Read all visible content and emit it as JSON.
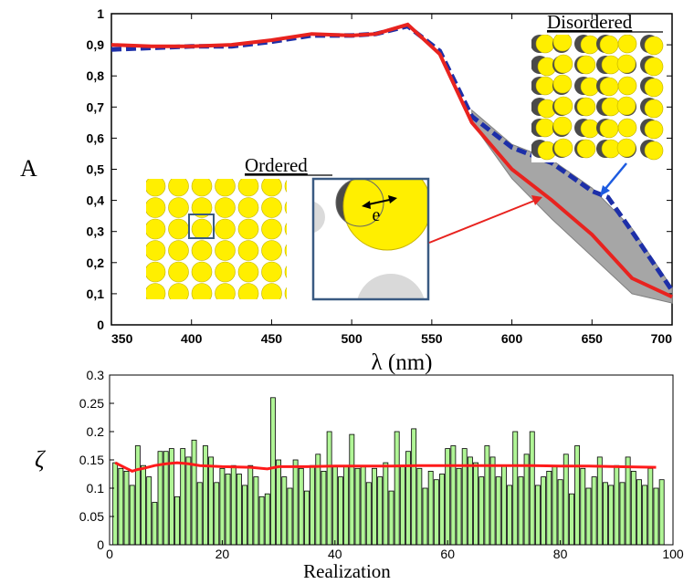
{
  "chart_data": [
    {
      "type": "area",
      "title": "",
      "xlabel": "λ (nm)",
      "ylabel": "A",
      "xlim": [
        350,
        700
      ],
      "ylim": [
        0,
        1
      ],
      "xticks": [
        350,
        400,
        450,
        500,
        550,
        600,
        650,
        700
      ],
      "yticks": [
        "0",
        "0,1",
        "0,2",
        "0,3",
        "0,4",
        "0,5",
        "0,6",
        "0,7",
        "0,8",
        "0,9",
        "1"
      ],
      "grid": false,
      "legend": "none",
      "series": [
        {
          "style": "solid",
          "color": "#e8231f",
          "x": [
            350,
            375,
            400,
            425,
            450,
            475,
            500,
            515,
            535,
            555,
            575,
            600,
            625,
            650,
            675,
            700
          ],
          "y": [
            0.9,
            0.895,
            0.895,
            0.9,
            0.915,
            0.935,
            0.93,
            0.935,
            0.965,
            0.87,
            0.65,
            0.5,
            0.4,
            0.29,
            0.15,
            0.09
          ]
        },
        {
          "style": "dashed",
          "color": "#1d2fa8",
          "x": [
            350,
            375,
            400,
            425,
            450,
            475,
            500,
            515,
            535,
            555,
            575,
            600,
            625,
            650,
            660,
            675,
            700
          ],
          "y": [
            0.885,
            0.89,
            0.895,
            0.895,
            0.91,
            0.93,
            0.93,
            0.935,
            0.96,
            0.88,
            0.67,
            0.57,
            0.52,
            0.43,
            0.41,
            0.3,
            0.11
          ]
        }
      ],
      "band": {
        "color": "#a6a6a6",
        "x": [
          575,
          600,
          625,
          650,
          675,
          700
        ],
        "upper": [
          0.69,
          0.58,
          0.53,
          0.44,
          0.31,
          0.12
        ],
        "lower": [
          0.65,
          0.47,
          0.34,
          0.22,
          0.1,
          0.07
        ]
      },
      "annotations": {
        "ordered": "Ordered",
        "disordered": "Disordered",
        "e_label": "e"
      },
      "colors": {
        "particle": "#ffef00",
        "shadow": "#4a4a4a",
        "frame": "#3a5a82"
      }
    },
    {
      "type": "bar",
      "title": "",
      "xlabel": "Realization",
      "ylabel": "ζ",
      "xlim": [
        0,
        100
      ],
      "ylim": [
        0,
        0.3
      ],
      "xticks": [
        0,
        20,
        40,
        60,
        80,
        100
      ],
      "yticks": [
        "0",
        "0.05",
        "0.1",
        "0.15",
        "0.2",
        "0.25",
        "0.3"
      ],
      "grid": false,
      "legend": "none",
      "bar_color": "#b0f596",
      "values": [
        0.145,
        0.135,
        0.13,
        0.105,
        0.175,
        0.14,
        0.12,
        0.075,
        0.165,
        0.165,
        0.17,
        0.085,
        0.17,
        0.155,
        0.185,
        0.11,
        0.175,
        0.155,
        0.11,
        0.135,
        0.125,
        0.14,
        0.125,
        0.105,
        0.14,
        0.12,
        0.085,
        0.09,
        0.26,
        0.15,
        0.12,
        0.1,
        0.15,
        0.135,
        0.095,
        0.14,
        0.16,
        0.13,
        0.2,
        0.14,
        0.12,
        0.14,
        0.195,
        0.135,
        0.14,
        0.11,
        0.135,
        0.12,
        0.145,
        0.095,
        0.2,
        0.14,
        0.165,
        0.205,
        0.135,
        0.1,
        0.13,
        0.115,
        0.125,
        0.17,
        0.175,
        0.135,
        0.17,
        0.155,
        0.145,
        0.12,
        0.175,
        0.155,
        0.12,
        0.14,
        0.105,
        0.2,
        0.12,
        0.16,
        0.2,
        0.105,
        0.12,
        0.13,
        0.14,
        0.115,
        0.16,
        0.09,
        0.175,
        0.135,
        0.1,
        0.12,
        0.155,
        0.11,
        0.105,
        0.14,
        0.11,
        0.155,
        0.13,
        0.115,
        0.105,
        0.135,
        0.1,
        0.115
      ],
      "line": {
        "color": "#ff1a1a",
        "x": [
          1,
          2,
          3,
          4,
          5,
          6,
          8,
          10,
          12,
          14,
          16,
          20,
          25,
          28,
          30,
          35,
          40,
          45,
          50,
          55,
          60,
          65,
          70,
          75,
          80,
          85,
          90,
          97
        ],
        "y": [
          0.145,
          0.14,
          0.135,
          0.13,
          0.133,
          0.135,
          0.14,
          0.143,
          0.145,
          0.143,
          0.14,
          0.138,
          0.137,
          0.134,
          0.138,
          0.138,
          0.139,
          0.139,
          0.139,
          0.14,
          0.14,
          0.14,
          0.14,
          0.14,
          0.139,
          0.139,
          0.138,
          0.137
        ]
      }
    }
  ]
}
